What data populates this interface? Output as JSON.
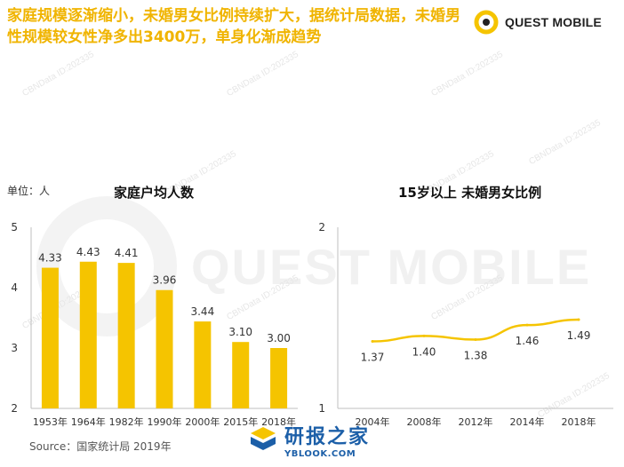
{
  "headline": "家庭规模逐渐缩小，未婚男女比例持续扩大，据统计局数据，未婚男性规模较女性净多出3400万，单身化渐成趋势",
  "logo": {
    "text": "QUEST MOBILE",
    "icon": "quest-mobile-ring-icon",
    "watermark": "QUEST MOBILE",
    "watermark_small": "CBNData ID:202335"
  },
  "unit_label": "单位：人",
  "source_text": "Source：国家统计局 2019年",
  "site_watermark": {
    "main": "研报之家",
    "sub": "YBLOOK.COM"
  },
  "colors": {
    "accent": "#f5c400",
    "title": "#f0b400",
    "axis": "#bfbfbf",
    "label": "#333333"
  },
  "chart_data": [
    {
      "type": "bar",
      "title": "家庭户均人数",
      "categories": [
        "1953年",
        "1964年",
        "1982年",
        "1990年",
        "2000年",
        "2015年",
        "2018年"
      ],
      "values": [
        4.33,
        4.43,
        4.41,
        3.96,
        3.44,
        3.1,
        3.0
      ],
      "value_labels": [
        "4.33",
        "4.43",
        "4.41",
        "3.96",
        "3.44",
        "3.10",
        "3.00"
      ],
      "ylim": [
        2,
        5
      ],
      "yticks": [
        "2",
        "3",
        "4",
        "5"
      ],
      "xlabel": "",
      "ylabel": "单位：人",
      "grid": false
    },
    {
      "type": "line",
      "title": "15岁以上 未婚男女比例",
      "categories": [
        "2004年",
        "2008年",
        "2012年",
        "2014年",
        "2018年"
      ],
      "values": [
        1.37,
        1.4,
        1.38,
        1.46,
        1.49
      ],
      "value_labels": [
        "1.37",
        "1.40",
        "1.38",
        "1.46",
        "1.49"
      ],
      "ylim": [
        1,
        2
      ],
      "yticks": [
        "1",
        "2"
      ],
      "xlabel": "",
      "ylabel": "",
      "grid": false
    }
  ]
}
